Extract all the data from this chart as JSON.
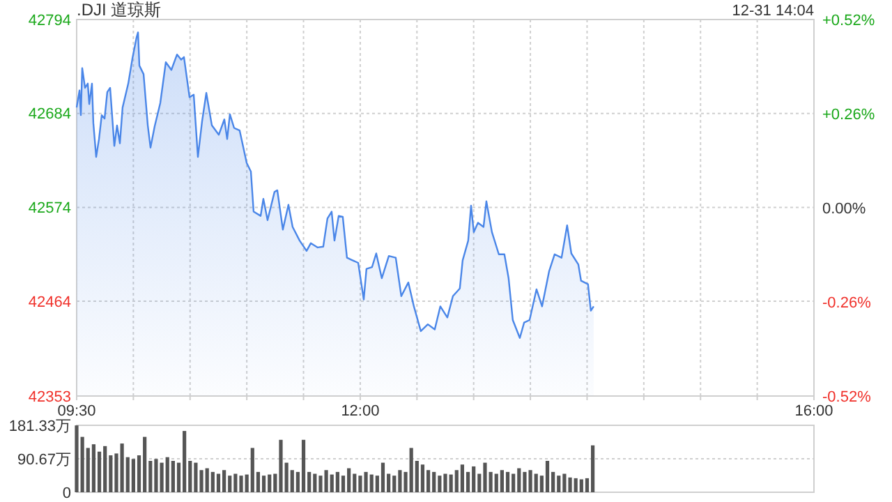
{
  "chart_data": [
    {
      "type": "area",
      "title": ".DJI 道琼斯",
      "annotations": [
        "12-31 14:04"
      ],
      "grid": true,
      "xlim": [
        9.5,
        16
      ],
      "xticks": [
        {
          "value": 9.5,
          "label": "09:30"
        },
        {
          "value": 10,
          "label": null
        },
        {
          "value": 10.5,
          "label": null
        },
        {
          "value": 11,
          "label": null
        },
        {
          "value": 11.5,
          "label": null
        },
        {
          "value": 12,
          "label": "12:00"
        },
        {
          "value": 12.5,
          "label": null
        },
        {
          "value": 13,
          "label": null
        },
        {
          "value": 13.5,
          "label": null
        },
        {
          "value": 14,
          "label": null
        },
        {
          "value": 14.5,
          "label": null
        },
        {
          "value": 15,
          "label": null
        },
        {
          "value": 15.5,
          "label": null
        },
        {
          "value": 16,
          "label": "16:00"
        }
      ],
      "ylim": [
        42353,
        42794
      ],
      "yticks": [
        42353,
        42464,
        42574,
        42684,
        42794
      ],
      "y2lim": [
        -0.52,
        0.52
      ],
      "y2ticks": [
        {
          "value": -0.52,
          "label": "-0.52%"
        },
        {
          "value": -0.26,
          "label": "-0.26%"
        },
        {
          "value": 0,
          "label": "0.00%"
        },
        {
          "value": 0.26,
          "label": "+0.26%"
        },
        {
          "value": 0.52,
          "label": "+0.52%"
        }
      ],
      "x": [
        9.5,
        9.525,
        9.537,
        9.549,
        9.574,
        9.598,
        9.611,
        9.635,
        9.647,
        9.672,
        9.697,
        9.721,
        9.746,
        9.77,
        9.795,
        9.832,
        9.856,
        9.881,
        9.905,
        9.955,
        9.991,
        10.028,
        10.041,
        10.053,
        10.09,
        10.127,
        10.151,
        10.188,
        10.237,
        10.286,
        10.335,
        10.385,
        10.421,
        10.446,
        10.495,
        10.532,
        10.569,
        10.606,
        10.643,
        10.692,
        10.753,
        10.802,
        10.827,
        10.851,
        10.888,
        10.937,
        10.999,
        11.036,
        11.06,
        11.122,
        11.146,
        11.183,
        11.244,
        11.269,
        11.318,
        11.367,
        11.404,
        11.466,
        11.527,
        11.564,
        11.625,
        11.674,
        11.711,
        11.748,
        11.773,
        11.81,
        11.846,
        11.883,
        11.932,
        11.982,
        12.031,
        12.055,
        12.104,
        12.141,
        12.19,
        12.252,
        12.313,
        12.362,
        12.424,
        12.473,
        12.534,
        12.596,
        12.657,
        12.706,
        12.768,
        12.817,
        12.878,
        12.903,
        12.952,
        12.977,
        13.001,
        13.038,
        13.087,
        13.112,
        13.161,
        13.222,
        13.271,
        13.308,
        13.345,
        13.407,
        13.445,
        13.493,
        13.554,
        13.603,
        13.665,
        13.714,
        13.775,
        13.824,
        13.861,
        13.923,
        13.947,
        14.008,
        14.033,
        14.058
      ],
      "series": [
        {
          "color": "#4a86e8",
          "values": [
            42691,
            42711,
            42682,
            42737,
            42714,
            42719,
            42695,
            42719,
            42673,
            42633,
            42654,
            42682,
            42678,
            42709,
            42714,
            42646,
            42670,
            42649,
            42691,
            42719,
            42748,
            42773,
            42779,
            42740,
            42730,
            42670,
            42644,
            42669,
            42696,
            42744,
            42735,
            42753,
            42747,
            42750,
            42703,
            42706,
            42633,
            42675,
            42708,
            42670,
            42659,
            42677,
            42654,
            42683,
            42667,
            42664,
            42626,
            42616,
            42569,
            42564,
            42584,
            42559,
            42592,
            42594,
            42548,
            42577,
            42551,
            42535,
            42523,
            42532,
            42527,
            42528,
            42561,
            42569,
            42535,
            42564,
            42563,
            42515,
            42512,
            42509,
            42466,
            42502,
            42504,
            42520,
            42491,
            42517,
            42515,
            42470,
            42486,
            42458,
            42429,
            42437,
            42431,
            42458,
            42445,
            42470,
            42479,
            42512,
            42535,
            42576,
            42545,
            42556,
            42551,
            42581,
            42545,
            42519,
            42519,
            42491,
            42442,
            42421,
            42439,
            42442,
            42478,
            42458,
            42499,
            42519,
            42515,
            42553,
            42520,
            42507,
            42488,
            42484,
            42453,
            42458
          ]
        }
      ]
    },
    {
      "type": "bar",
      "grid": "y",
      "tick_labels": "y",
      "color": "#555555",
      "xlim": [
        9.5,
        16
      ],
      "ylim": [
        0,
        181.33
      ],
      "yticks": [
        0,
        {
          "value": 90.67,
          "label": "90.67万"
        },
        {
          "value": 181.33,
          "label": "181.33万"
        }
      ],
      "x": [
        9.5,
        9.55,
        9.6,
        9.65,
        9.7,
        9.75,
        9.8,
        9.85,
        9.9,
        9.95,
        10,
        10.05,
        10.1,
        10.15,
        10.2,
        10.25,
        10.3,
        10.35,
        10.4,
        10.45,
        10.5,
        10.55,
        10.6,
        10.65,
        10.7,
        10.75,
        10.8,
        10.85,
        10.9,
        10.95,
        11,
        11.05,
        11.1,
        11.15,
        11.2,
        11.25,
        11.3,
        11.35,
        11.4,
        11.45,
        11.5,
        11.55,
        11.6,
        11.65,
        11.7,
        11.75,
        11.8,
        11.85,
        11.9,
        11.95,
        12,
        12.05,
        12.1,
        12.15,
        12.2,
        12.25,
        12.3,
        12.35,
        12.4,
        12.45,
        12.5,
        12.55,
        12.6,
        12.65,
        12.7,
        12.75,
        12.8,
        12.85,
        12.9,
        12.95,
        13,
        13.05,
        13.1,
        13.15,
        13.2,
        13.25,
        13.3,
        13.35,
        13.4,
        13.45,
        13.5,
        13.55,
        13.6,
        13.65,
        13.7,
        13.75,
        13.8,
        13.85,
        13.9,
        13.95,
        14,
        14.05
      ],
      "values": [
        181,
        150,
        120,
        130,
        110,
        125,
        100,
        105,
        132,
        95,
        90,
        100,
        150,
        85,
        90,
        80,
        95,
        85,
        80,
        166,
        85,
        80,
        60,
        65,
        55,
        50,
        60,
        45,
        50,
        45,
        48,
        120,
        55,
        45,
        48,
        50,
        142,
        80,
        60,
        55,
        142,
        55,
        50,
        45,
        60,
        48,
        55,
        45,
        65,
        50,
        45,
        55,
        48,
        45,
        80,
        50,
        45,
        60,
        55,
        120,
        85,
        75,
        60,
        55,
        45,
        50,
        48,
        60,
        75,
        55,
        70,
        50,
        80,
        55,
        50,
        60,
        55,
        50,
        65,
        55,
        60,
        50,
        45,
        85,
        55,
        45,
        50,
        40,
        38,
        35,
        38,
        127
      ]
    }
  ]
}
